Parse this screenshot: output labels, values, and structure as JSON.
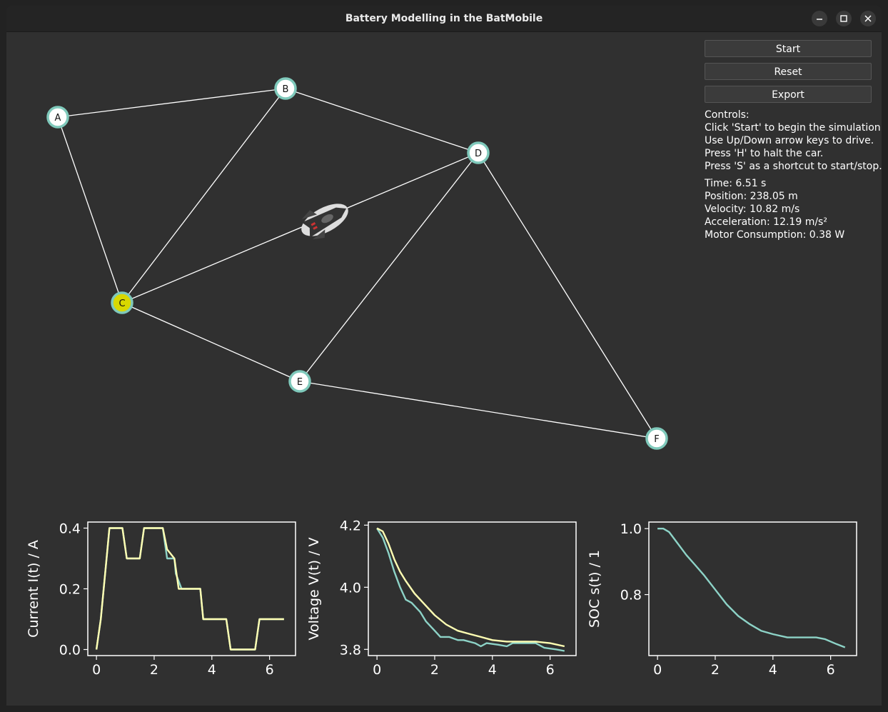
{
  "window": {
    "title": "Battery Modelling in the BatMobile"
  },
  "buttons": {
    "start": "Start",
    "reset": "Reset",
    "export": "Export"
  },
  "controls": {
    "heading": "Controls:",
    "lines": [
      "Click 'Start' to begin the simulation.",
      "Use Up/Down arrow keys to drive.",
      "Press 'H' to halt the car.",
      "Press 'S' as a shortcut to start/stop."
    ]
  },
  "stats": {
    "time": "Time: 6.51 s",
    "position": "Position: 238.05 m",
    "velocity": "Velocity: 10.82 m/s",
    "acceleration": "Acceleration: 12.19 m/s²",
    "motor": "Motor Consumption: 0.38 W"
  },
  "graph": {
    "nodes": [
      {
        "id": "A",
        "label": "A",
        "highlighted": false
      },
      {
        "id": "B",
        "label": "B",
        "highlighted": false
      },
      {
        "id": "C",
        "label": "C",
        "highlighted": true
      },
      {
        "id": "D",
        "label": "D",
        "highlighted": false
      },
      {
        "id": "E",
        "label": "E",
        "highlighted": false
      },
      {
        "id": "F",
        "label": "F",
        "highlighted": false
      }
    ],
    "edges": [
      [
        "A",
        "B"
      ],
      [
        "A",
        "C"
      ],
      [
        "B",
        "C"
      ],
      [
        "B",
        "D"
      ],
      [
        "C",
        "D"
      ],
      [
        "C",
        "E"
      ],
      [
        "D",
        "E"
      ],
      [
        "D",
        "F"
      ],
      [
        "E",
        "F"
      ]
    ],
    "colors": {
      "node_fill": "#ffffff",
      "node_ring": "#7fc9bb",
      "highlight": "#d8d800",
      "edge": "#ffffff"
    }
  },
  "chart_data": [
    {
      "type": "line",
      "ylabel": "Current I(t) / A",
      "xlim": [
        -0.3,
        6.9
      ],
      "ylim": [
        -0.02,
        0.42
      ],
      "xticks": [
        0,
        2,
        4,
        6
      ],
      "yticks": [
        0.0,
        0.2,
        0.4
      ],
      "xticklabels": [
        "0",
        "2",
        "4",
        "6"
      ],
      "yticklabels": [
        "0.0",
        "0.2",
        "0.4"
      ],
      "series": [
        {
          "color": "#8dd3c7",
          "x": [
            0,
            0.15,
            0.35,
            0.45,
            0.9,
            1.05,
            1.5,
            1.65,
            2.3,
            2.45,
            2.7,
            2.75,
            2.95,
            3.05,
            3.6,
            3.7,
            4.5,
            4.65,
            5.5,
            5.65,
            6.5
          ],
          "y": [
            0,
            0.1,
            0.3,
            0.4,
            0.4,
            0.3,
            0.3,
            0.4,
            0.4,
            0.3,
            0.3,
            0.25,
            0.2,
            0.2,
            0.2,
            0.1,
            0.1,
            0,
            0,
            0.1,
            0.1
          ]
        },
        {
          "color": "#ffffb3",
          "x": [
            0,
            0.15,
            0.35,
            0.45,
            0.9,
            1.05,
            1.5,
            1.65,
            2.3,
            2.45,
            2.7,
            2.85,
            3.05,
            3.6,
            3.7,
            4.5,
            4.65,
            5.5,
            5.65,
            6.5
          ],
          "y": [
            0,
            0.1,
            0.3,
            0.4,
            0.4,
            0.3,
            0.3,
            0.4,
            0.4,
            0.33,
            0.3,
            0.2,
            0.2,
            0.2,
            0.1,
            0.1,
            0,
            0,
            0.1,
            0.1
          ]
        }
      ]
    },
    {
      "type": "line",
      "ylabel": "Voltage V(t) / V",
      "xlim": [
        -0.3,
        6.9
      ],
      "ylim": [
        3.78,
        4.21
      ],
      "xticks": [
        0,
        2,
        4,
        6
      ],
      "yticks": [
        3.8,
        4.0,
        4.2
      ],
      "xticklabels": [
        "0",
        "2",
        "4",
        "6"
      ],
      "yticklabels": [
        "3.8",
        "4.0",
        "4.2"
      ],
      "series": [
        {
          "color": "#8dd3c7",
          "x": [
            0,
            0.2,
            0.4,
            0.6,
            0.8,
            1.0,
            1.2,
            1.5,
            1.7,
            2.0,
            2.2,
            2.5,
            2.8,
            3.0,
            3.4,
            3.6,
            3.8,
            4.2,
            4.5,
            4.7,
            5.0,
            5.5,
            5.8,
            6.2,
            6.5
          ],
          "y": [
            4.19,
            4.16,
            4.11,
            4.05,
            4.0,
            3.96,
            3.95,
            3.92,
            3.89,
            3.86,
            3.84,
            3.84,
            3.83,
            3.83,
            3.82,
            3.81,
            3.82,
            3.815,
            3.81,
            3.82,
            3.82,
            3.82,
            3.805,
            3.8,
            3.795
          ]
        },
        {
          "color": "#ffffb3",
          "x": [
            0,
            0.2,
            0.4,
            0.6,
            0.8,
            1.0,
            1.3,
            1.6,
            2.0,
            2.4,
            2.8,
            3.2,
            3.6,
            4.0,
            4.5,
            5.0,
            5.5,
            6.0,
            6.5
          ],
          "y": [
            4.19,
            4.18,
            4.14,
            4.09,
            4.05,
            4.02,
            3.98,
            3.95,
            3.91,
            3.88,
            3.86,
            3.85,
            3.84,
            3.83,
            3.825,
            3.825,
            3.825,
            3.82,
            3.81
          ]
        }
      ]
    },
    {
      "type": "line",
      "ylabel": "SOC s(t) / 1",
      "xlim": [
        -0.3,
        6.9
      ],
      "ylim": [
        0.615,
        1.02
      ],
      "xticks": [
        0,
        2,
        4,
        6
      ],
      "yticks": [
        0.8,
        1.0
      ],
      "xticklabels": [
        "0",
        "2",
        "4",
        "6"
      ],
      "yticklabels": [
        "0.8",
        "1.0"
      ],
      "series": [
        {
          "color": "#8dd3c7",
          "x": [
            0,
            0.2,
            0.4,
            0.7,
            1.0,
            1.3,
            1.6,
            2.0,
            2.4,
            2.8,
            3.2,
            3.6,
            4.0,
            4.5,
            5.0,
            5.5,
            5.8,
            6.2,
            6.5
          ],
          "y": [
            1.0,
            1.0,
            0.99,
            0.955,
            0.92,
            0.89,
            0.86,
            0.815,
            0.77,
            0.735,
            0.71,
            0.69,
            0.68,
            0.67,
            0.67,
            0.67,
            0.665,
            0.65,
            0.64
          ]
        }
      ]
    }
  ]
}
